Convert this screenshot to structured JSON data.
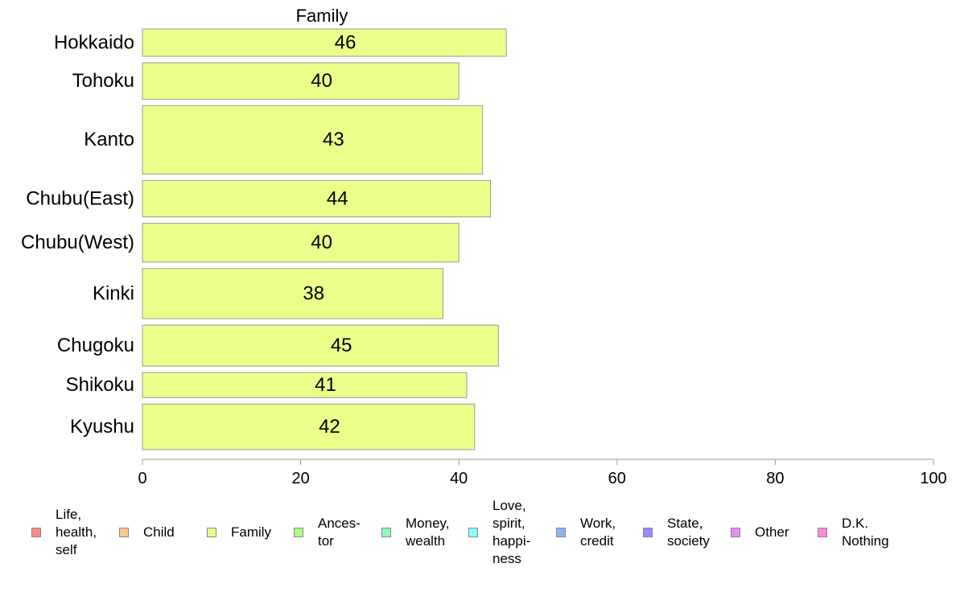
{
  "chart_data": {
    "type": "bar",
    "orientation": "horizontal",
    "title": "Family",
    "categories": [
      "Hokkaido",
      "Tohoku",
      "Kanto",
      "Chubu(East)",
      "Chubu(West)",
      "Kinki",
      "Chugoku",
      "Shikoku",
      "Kyushu"
    ],
    "series": [
      {
        "name": "Family",
        "values": [
          46,
          40,
          43,
          44,
          40,
          38,
          45,
          41,
          42
        ],
        "color": "#ebff8a"
      }
    ],
    "category_weights": [
      0.6,
      0.8,
      1.5,
      0.8,
      0.85,
      1.1,
      0.9,
      0.55,
      1.0
    ],
    "xlim": [
      0,
      100
    ],
    "xticks": [
      0,
      20,
      40,
      60,
      80,
      100
    ],
    "grid": false,
    "legend_position": "bottom",
    "legend": [
      {
        "label": "Life,\nhealth,\nself",
        "color": "#ff8a8a"
      },
      {
        "label": "Child",
        "color": "#ffc98a"
      },
      {
        "label": "Family",
        "color": "#ebff8a"
      },
      {
        "label": "Ances-\ntor",
        "color": "#aaff8a"
      },
      {
        "label": "Money,\nwealth",
        "color": "#8affbe"
      },
      {
        "label": "Love,\nspirit,\nhappi-\nness",
        "color": "#8affff"
      },
      {
        "label": "Work,\ncredit",
        "color": "#8ab4ff"
      },
      {
        "label": "State,\nsociety",
        "color": "#9a8aff"
      },
      {
        "label": "Other",
        "color": "#eb8aff"
      },
      {
        "label": "D.K.\nNothing",
        "color": "#ff8ad2"
      }
    ]
  }
}
